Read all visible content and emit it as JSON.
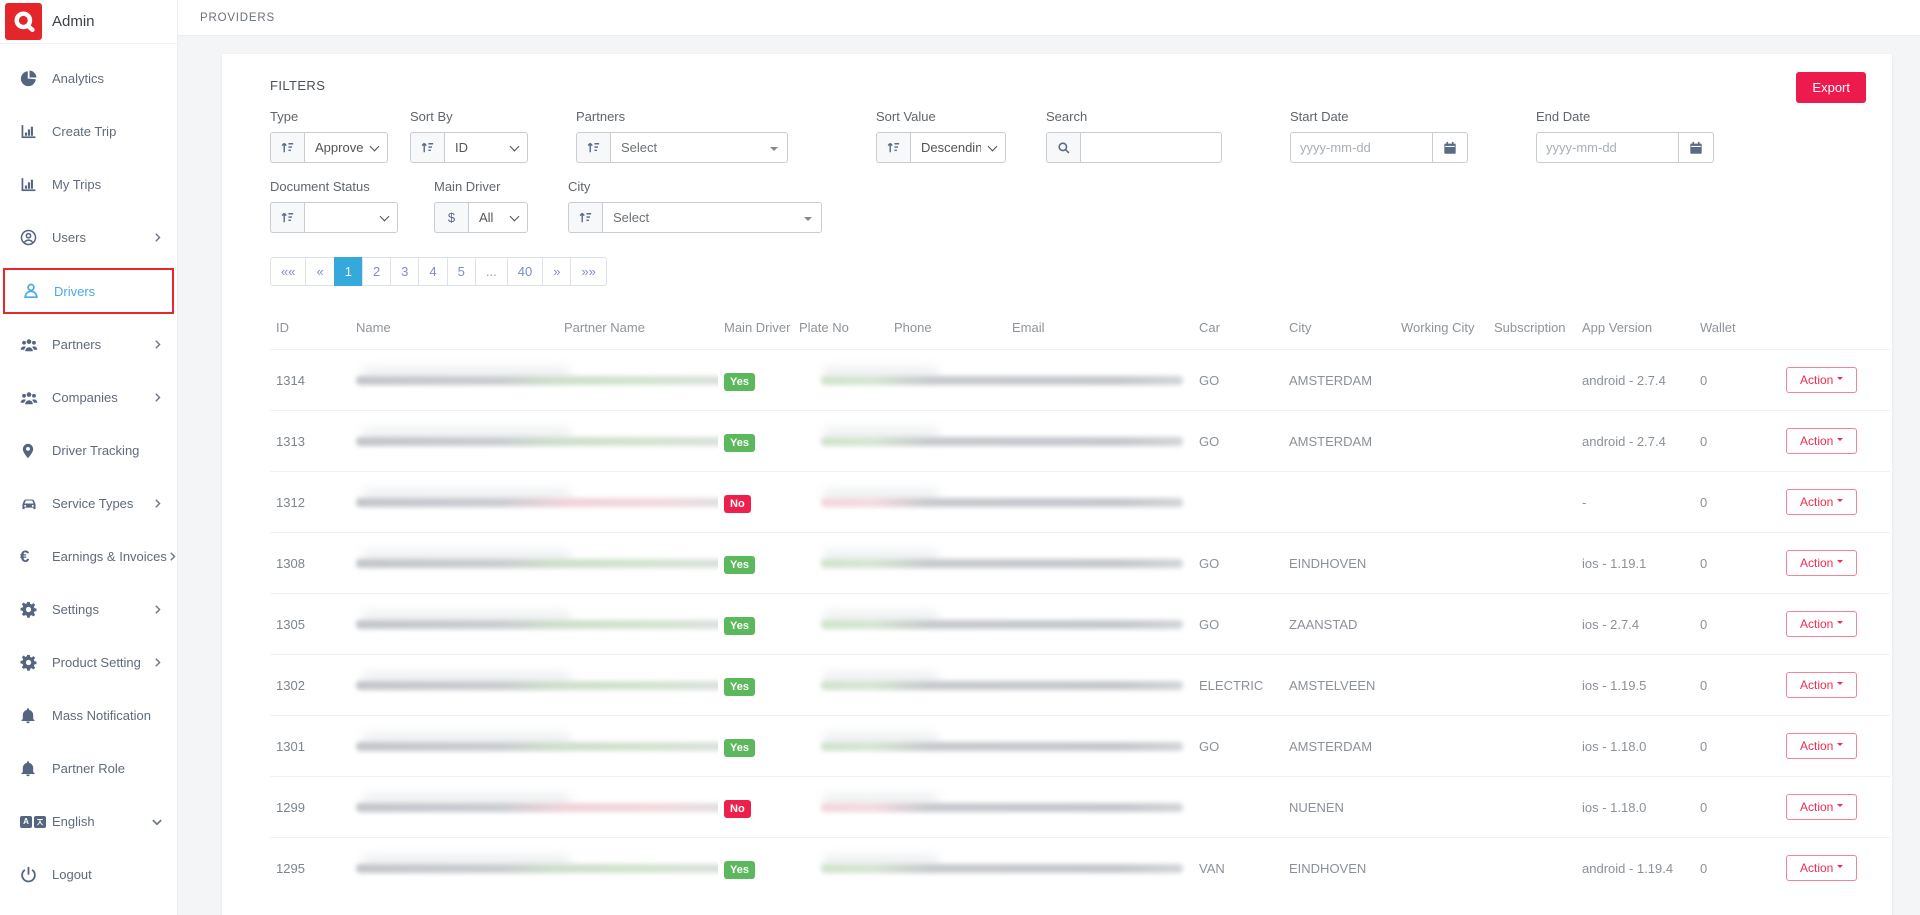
{
  "sidebar": {
    "brand": "Admin",
    "items": [
      {
        "label": "Analytics",
        "icon": "pie-chart-icon"
      },
      {
        "label": "Create Trip",
        "icon": "bar-chart-icon"
      },
      {
        "label": "My Trips",
        "icon": "bar-chart-icon"
      },
      {
        "label": "Users",
        "icon": "user-circle-icon",
        "chevron": "right"
      },
      {
        "label": "Drivers",
        "icon": "driver-icon",
        "active": true
      },
      {
        "label": "Partners",
        "icon": "people-group-icon",
        "chevron": "right"
      },
      {
        "label": "Companies",
        "icon": "people-group-icon",
        "chevron": "right"
      },
      {
        "label": "Driver Tracking",
        "icon": "map-pin-icon"
      },
      {
        "label": "Service Types",
        "icon": "car-icon",
        "chevron": "right"
      },
      {
        "label": "Earnings & Invoices",
        "icon": "euro-icon",
        "chevron": "right"
      },
      {
        "label": "Settings",
        "icon": "gear-icon",
        "chevron": "right"
      },
      {
        "label": "Product Setting",
        "icon": "gear-icon",
        "chevron": "right"
      },
      {
        "label": "Mass Notification",
        "icon": "bell-icon"
      },
      {
        "label": "Partner Role",
        "icon": "bell-icon"
      },
      {
        "label": "English",
        "icon": "translate-icon",
        "chevron": "down"
      },
      {
        "label": "Logout",
        "icon": "power-icon"
      }
    ]
  },
  "topbar": {
    "breadcrumb": "PROVIDERS"
  },
  "filters": {
    "title": "FILTERS",
    "export_label": "Export",
    "type": {
      "label": "Type",
      "value": "Approved"
    },
    "sort_by": {
      "label": "Sort By",
      "value": "ID"
    },
    "partners": {
      "label": "Partners",
      "placeholder": "Select"
    },
    "sort_value": {
      "label": "Sort Value",
      "value": "Descending"
    },
    "search": {
      "label": "Search",
      "value": ""
    },
    "start_date": {
      "label": "Start Date",
      "placeholder": "yyyy-mm-dd"
    },
    "end_date": {
      "label": "End Date",
      "placeholder": "yyyy-mm-dd"
    },
    "document_status": {
      "label": "Document Status",
      "value": ""
    },
    "main_driver": {
      "label": "Main Driver",
      "value": "All",
      "prefix": "$"
    },
    "city": {
      "label": "City",
      "placeholder": "Select"
    }
  },
  "pagination": {
    "items": [
      {
        "label": "««"
      },
      {
        "label": "«"
      },
      {
        "label": "1",
        "active": true
      },
      {
        "label": "2"
      },
      {
        "label": "3"
      },
      {
        "label": "4"
      },
      {
        "label": "5"
      },
      {
        "label": "...",
        "dots": true
      },
      {
        "label": "40"
      },
      {
        "label": "»"
      },
      {
        "label": "»»"
      }
    ]
  },
  "table": {
    "headers": [
      "ID",
      "Name",
      "Partner Name",
      "Main Driver",
      "Plate No",
      "Phone",
      "Email",
      "Car",
      "City",
      "Working City",
      "Subscription",
      "App Version",
      "Wallet",
      ""
    ],
    "action_label": "Action",
    "rows": [
      {
        "id": "1314",
        "main_driver": "Yes",
        "car": "GO",
        "city": "AMSTERDAM",
        "working_city": "",
        "subscription": "",
        "app_version": "android - 2.7.4",
        "wallet": "0"
      },
      {
        "id": "1313",
        "main_driver": "Yes",
        "car": "GO",
        "city": "AMSTERDAM",
        "working_city": "",
        "subscription": "",
        "app_version": "android - 2.7.4",
        "wallet": "0"
      },
      {
        "id": "1312",
        "main_driver": "No",
        "car": "",
        "city": "",
        "working_city": "",
        "subscription": "",
        "app_version": "-",
        "wallet": "0"
      },
      {
        "id": "1308",
        "main_driver": "Yes",
        "car": "GO",
        "city": "EINDHOVEN",
        "working_city": "",
        "subscription": "",
        "app_version": "ios - 1.19.1",
        "wallet": "0"
      },
      {
        "id": "1305",
        "main_driver": "Yes",
        "car": "GO",
        "city": "ZAANSTAD",
        "working_city": "",
        "subscription": "",
        "app_version": "ios - 2.7.4",
        "wallet": "0"
      },
      {
        "id": "1302",
        "main_driver": "Yes",
        "car": "ELECTRIC",
        "city": "AMSTELVEEN",
        "working_city": "",
        "subscription": "",
        "app_version": "ios - 1.19.5",
        "wallet": "0"
      },
      {
        "id": "1301",
        "main_driver": "Yes",
        "car": "GO",
        "city": "AMSTERDAM",
        "working_city": "",
        "subscription": "",
        "app_version": "ios - 1.18.0",
        "wallet": "0"
      },
      {
        "id": "1299",
        "main_driver": "No",
        "car": "",
        "city": "NUENEN",
        "working_city": "",
        "subscription": "",
        "app_version": "ios - 1.18.0",
        "wallet": "0"
      },
      {
        "id": "1295",
        "main_driver": "Yes",
        "car": "VAN",
        "city": "EINDHOVEN",
        "working_city": "",
        "subscription": "",
        "app_version": "android - 1.19.4",
        "wallet": "0"
      }
    ]
  },
  "colors": {
    "logo_red": "#e42529",
    "annotation_red": "#e8272c",
    "active_blue": "#4aa9e9",
    "pagination_active": "#35a9dc",
    "accent_red": "#ed1b4d",
    "badge_green": "#5cb85c",
    "badge_red": "#ed204c"
  }
}
